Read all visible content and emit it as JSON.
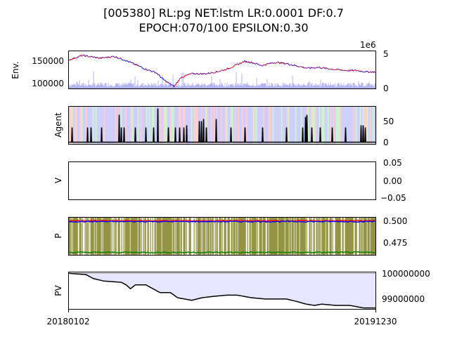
{
  "title_line1": "[005380] RL:pg NET:lstm LR:0.0001 DF:0.7",
  "title_line2": "EPOCH:070/100 EPSILON:0.30",
  "x_start_label": "20180102",
  "x_end_label": "20191230",
  "colors": {
    "price_up": "#ff0000",
    "price_down": "#0000ff",
    "volume": "#b3b3f2",
    "action_black": "#000000",
    "buy_bg": "#9999ff",
    "sell_bg": "#ff9999",
    "hold_bg": "#99e699",
    "p_buy": "#ff0000",
    "p_sell": "#0000ff",
    "p_hold": "#008000",
    "p_exploration": "#8c8c33",
    "pv_fill": "#e6e6ff",
    "pv_line": "#000000"
  },
  "chart_data": [
    {
      "id": "env",
      "type": "line",
      "ylabel": "Env.",
      "left_ticks": [
        "150000",
        "100000"
      ],
      "right_ticks": [
        "5",
        "0"
      ],
      "right_offset_label": "1e6",
      "series": [
        {
          "kind": "price",
          "values_anchor": [
            [
              0,
              148000
            ],
            [
              20,
              158000
            ],
            [
              45,
              152000
            ],
            [
              65,
              156000
            ],
            [
              80,
              148000
            ],
            [
              95,
              138000
            ],
            [
              110,
              128000
            ],
            [
              125,
              120000
            ],
            [
              135,
              105000
            ],
            [
              150,
              90000
            ],
            [
              160,
              110000
            ],
            [
              175,
              118000
            ],
            [
              195,
              118000
            ],
            [
              210,
              122000
            ],
            [
              225,
              128000
            ],
            [
              240,
              138000
            ],
            [
              250,
              145000
            ],
            [
              260,
              143000
            ],
            [
              275,
              136000
            ],
            [
              285,
              140000
            ],
            [
              295,
              143000
            ],
            [
              310,
              140000
            ],
            [
              325,
              135000
            ],
            [
              340,
              130000
            ],
            [
              355,
              132000
            ],
            [
              375,
              128000
            ],
            [
              395,
              125000
            ],
            [
              410,
              125000
            ],
            [
              425,
              122000
            ],
            [
              437,
              122000
            ]
          ]
        },
        {
          "kind": "volume",
          "unit": "1e6",
          "range": [
            0,
            5
          ]
        }
      ],
      "ylim": [
        85000,
        168000
      ]
    },
    {
      "id": "agent",
      "type": "line",
      "ylabel": "Agent",
      "right_ticks": [
        "50",
        "0"
      ],
      "ylim": [
        -5,
        85
      ],
      "spikes": [
        [
          5,
          35
        ],
        [
          27,
          35
        ],
        [
          32,
          35
        ],
        [
          47,
          35
        ],
        [
          72,
          65
        ],
        [
          75,
          35
        ],
        [
          79,
          35
        ],
        [
          95,
          35
        ],
        [
          110,
          35
        ],
        [
          121,
          35
        ],
        [
          127,
          80
        ],
        [
          142,
          35
        ],
        [
          152,
          35
        ],
        [
          158,
          35
        ],
        [
          164,
          35
        ],
        [
          168,
          40
        ],
        [
          186,
          50
        ],
        [
          189,
          50
        ],
        [
          192,
          55
        ],
        [
          196,
          35
        ],
        [
          210,
          55
        ],
        [
          231,
          35
        ],
        [
          251,
          35
        ],
        [
          276,
          35
        ],
        [
          310,
          35
        ],
        [
          333,
          35
        ],
        [
          337,
          60
        ],
        [
          339,
          65
        ],
        [
          346,
          35
        ],
        [
          358,
          35
        ],
        [
          375,
          35
        ],
        [
          394,
          35
        ],
        [
          416,
          40
        ],
        [
          419,
          40
        ],
        [
          422,
          35
        ]
      ]
    },
    {
      "id": "value",
      "type": "line",
      "ylabel": "V",
      "right_ticks": [
        "0.05",
        "0.00",
        "−0.05"
      ],
      "ylim": [
        -0.06,
        0.06
      ]
    },
    {
      "id": "policy",
      "type": "line",
      "ylabel": "P",
      "right_ticks": [
        "0.500",
        "0.475"
      ],
      "ylim": [
        0.465,
        0.505
      ]
    },
    {
      "id": "portfolio",
      "type": "area",
      "ylabel": "PV",
      "right_ticks": [
        "100000000",
        "99000000"
      ],
      "ylim": [
        98600000,
        100050000
      ],
      "values_anchor": [
        [
          0,
          100000000
        ],
        [
          25,
          99950000
        ],
        [
          35,
          99800000
        ],
        [
          50,
          99700000
        ],
        [
          75,
          99650000
        ],
        [
          82,
          99550000
        ],
        [
          88,
          99400000
        ],
        [
          95,
          99550000
        ],
        [
          110,
          99550000
        ],
        [
          120,
          99400000
        ],
        [
          130,
          99250000
        ],
        [
          145,
          99250000
        ],
        [
          155,
          99050000
        ],
        [
          165,
          99000000
        ],
        [
          175,
          98950000
        ],
        [
          190,
          99050000
        ],
        [
          205,
          99100000
        ],
        [
          225,
          99150000
        ],
        [
          240,
          99150000
        ],
        [
          260,
          99050000
        ],
        [
          280,
          99000000
        ],
        [
          310,
          99000000
        ],
        [
          325,
          98900000
        ],
        [
          338,
          98800000
        ],
        [
          350,
          98750000
        ],
        [
          360,
          98800000
        ],
        [
          380,
          98750000
        ],
        [
          400,
          98750000
        ],
        [
          410,
          98700000
        ],
        [
          420,
          98650000
        ],
        [
          437,
          98650000
        ]
      ]
    }
  ]
}
